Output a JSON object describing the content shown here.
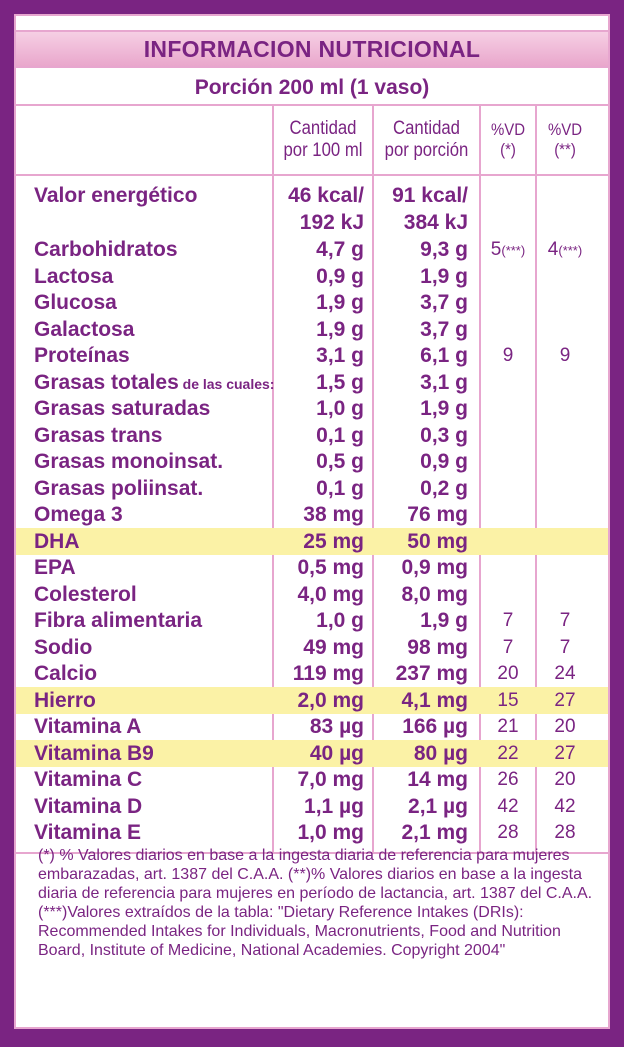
{
  "title": "INFORMACION NUTRICIONAL",
  "portion": "Porción 200 ml (1 vaso)",
  "headers": {
    "col1_line1": "Cantidad",
    "col1_line2": "por 100 ml",
    "col2_line1": "Cantidad",
    "col2_line2": "por porción",
    "col3_line1": "%VD",
    "col3_line2": "(*)",
    "col4_line1": "%VD",
    "col4_line2": "(**)"
  },
  "energy": {
    "name": "Valor energético",
    "per100_line1": "46 kcal/",
    "per100_line2": "192 kJ",
    "perportion_line1": "91 kcal/",
    "perportion_line2": "384 kJ"
  },
  "rows": [
    {
      "name": "Carbohidratos",
      "per100": "4,7 g",
      "perportion": "9,3 g",
      "vd1": "5",
      "vd1_note": "(***)",
      "vd2": "4",
      "vd2_note": "(***)",
      "highlight": false
    },
    {
      "name": "Lactosa",
      "per100": "0,9 g",
      "perportion": "1,9 g",
      "vd1": "",
      "vd2": "",
      "highlight": false
    },
    {
      "name": "Glucosa",
      "per100": "1,9 g",
      "perportion": "3,7 g",
      "vd1": "",
      "vd2": "",
      "highlight": false
    },
    {
      "name": "Galactosa",
      "per100": "1,9 g",
      "perportion": "3,7 g",
      "vd1": "",
      "vd2": "",
      "highlight": false
    },
    {
      "name": "Proteínas",
      "per100": "3,1 g",
      "perportion": "6,1 g",
      "vd1": "9",
      "vd2": "9",
      "highlight": false
    },
    {
      "name": "Grasas totales",
      "name_suffix": " de las cuales:",
      "per100": "1,5 g",
      "perportion": "3,1 g",
      "vd1": "",
      "vd2": "",
      "highlight": false
    },
    {
      "name": "Grasas saturadas",
      "per100": "1,0 g",
      "perportion": "1,9 g",
      "vd1": "",
      "vd2": "",
      "highlight": false
    },
    {
      "name": "Grasas trans",
      "per100": "0,1 g",
      "perportion": "0,3 g",
      "vd1": "",
      "vd2": "",
      "highlight": false
    },
    {
      "name": "Grasas monoinsat.",
      "per100": "0,5 g",
      "perportion": "0,9 g",
      "vd1": "",
      "vd2": "",
      "highlight": false
    },
    {
      "name": "Grasas poliinsat.",
      "per100": "0,1 g",
      "perportion": "0,2 g",
      "vd1": "",
      "vd2": "",
      "highlight": false
    },
    {
      "name": "Omega 3",
      "per100": "38 mg",
      "perportion": "76 mg",
      "vd1": "",
      "vd2": "",
      "highlight": false
    },
    {
      "name": "DHA",
      "per100": "25 mg",
      "perportion": "50 mg",
      "vd1": "",
      "vd2": "",
      "highlight": true
    },
    {
      "name": "EPA",
      "per100": "0,5 mg",
      "perportion": "0,9 mg",
      "vd1": "",
      "vd2": "",
      "highlight": false
    },
    {
      "name": "Colesterol",
      "per100": "4,0 mg",
      "perportion": "8,0 mg",
      "vd1": "",
      "vd2": "",
      "highlight": false
    },
    {
      "name": "Fibra alimentaria",
      "per100": "1,0 g",
      "perportion": "1,9 g",
      "vd1": "7",
      "vd2": "7",
      "highlight": false
    },
    {
      "name": "Sodio",
      "per100": "49 mg",
      "perportion": "98 mg",
      "vd1": "7",
      "vd2": "7",
      "highlight": false
    },
    {
      "name": "Calcio",
      "per100": "119 mg",
      "perportion": "237 mg",
      "vd1": "20",
      "vd2": "24",
      "highlight": false
    },
    {
      "name": "Hierro",
      "per100": "2,0 mg",
      "perportion": "4,1 mg",
      "vd1": "15",
      "vd2": "27",
      "highlight": true
    },
    {
      "name": "Vitamina A",
      "per100": "83 µg",
      "perportion": "166 µg",
      "vd1": "21",
      "vd2": "20",
      "highlight": false
    },
    {
      "name": "Vitamina B9",
      "per100": "40 µg",
      "perportion": "80 µg",
      "vd1": "22",
      "vd2": "27",
      "highlight": true
    },
    {
      "name": "Vitamina C",
      "per100": "7,0 mg",
      "perportion": "14 mg",
      "vd1": "26",
      "vd2": "20",
      "highlight": false
    },
    {
      "name": "Vitamina D",
      "per100": "1,1 µg",
      "perportion": "2,1 µg",
      "vd1": "42",
      "vd2": "42",
      "highlight": false
    },
    {
      "name": "Vitamina E",
      "per100": "1,0 mg",
      "perportion": "2,1 mg",
      "vd1": "28",
      "vd2": "28",
      "highlight": false
    }
  ],
  "footnotes": {
    "note1": "(*) % Valores diarios en base a la ingesta diaria de referencia para mujeres embarazadas, art. 1387 del C.A.A. (**)% Valores diarios en base a la ingesta diaria de referencia para mujeres en período de lactancia, art. 1387 del C.A.A.",
    "note2": "(***)Valores extraídos de la tabla: \"Dietary Reference Intakes (DRIs): Recommended Intakes for Individuals, Macronutrients, Food and Nutrition Board, Institute of Medicine, National Academies. Copyright 2004\""
  },
  "colors": {
    "frame": "#7a2482",
    "line": "#e7a6cf",
    "highlight": "#fbf2a6",
    "text": "#7a2482"
  }
}
